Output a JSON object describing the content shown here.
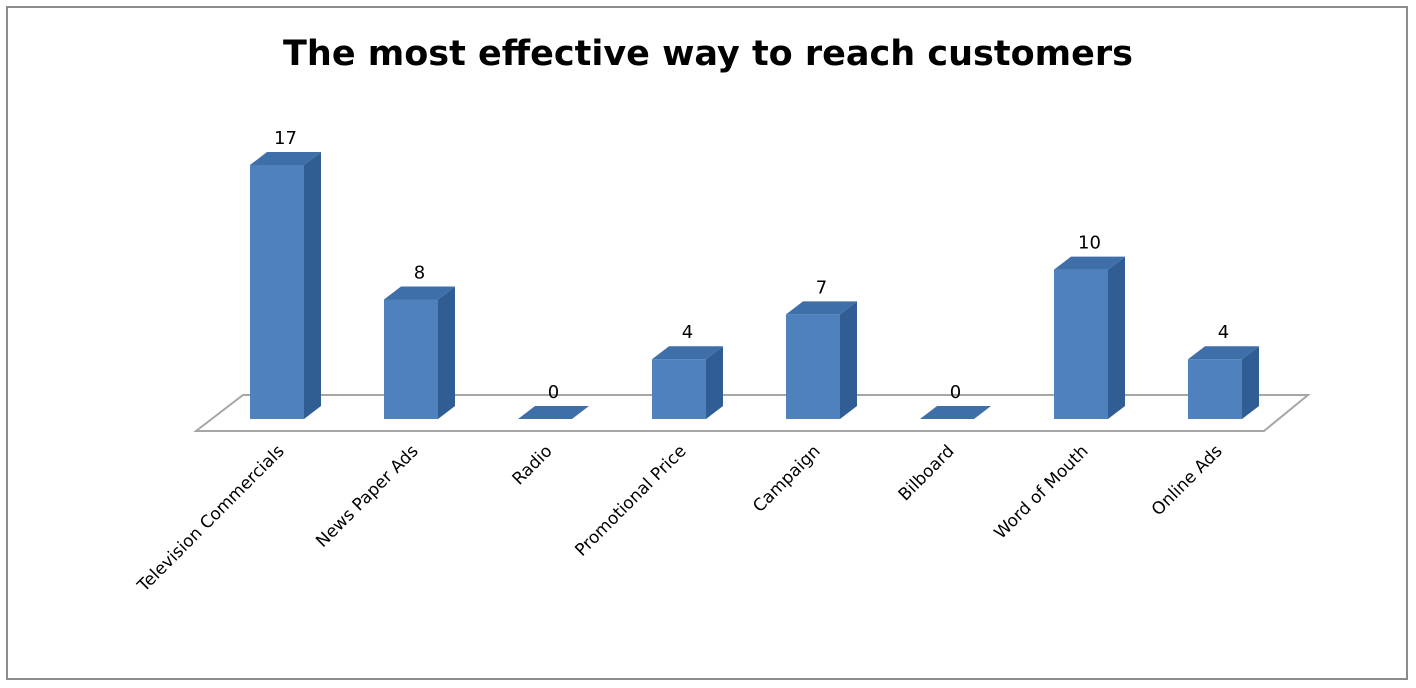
{
  "chart_data": {
    "type": "bar",
    "title": "The most effective way to reach customers",
    "xlabel": "",
    "ylabel": "",
    "categories": [
      "Television Commercials",
      "News Paper Ads",
      "Radio",
      "Promotional Price",
      "Campaign",
      "Bilboard",
      "Word of Mouth",
      "Online Ads"
    ],
    "values": [
      17,
      8,
      0,
      4,
      7,
      0,
      10,
      4
    ],
    "ylim": [
      0,
      17
    ],
    "grid": false,
    "legend": "none",
    "three_d": true,
    "colors": {
      "bar_front": "#4f81bd",
      "bar_side": "#2f5d94",
      "bar_top": "#3f6fa8",
      "floor": "#a6a6a6",
      "frame": "#8c8c8c"
    }
  }
}
